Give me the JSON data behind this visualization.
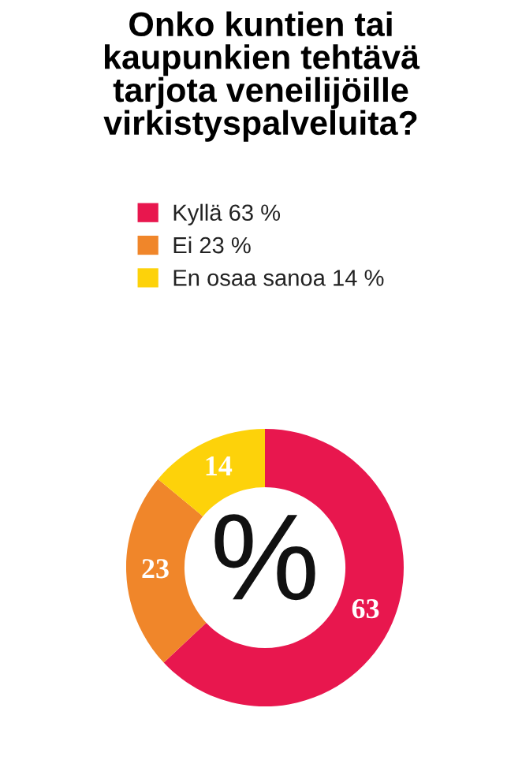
{
  "chart_data": {
    "type": "donut",
    "title": "Onko kuntien tai\nkaupunkien tehtävä\ntarjota veneilijöille\nvirkistyspalveluita?",
    "categories": [
      "Kyllä 63 %",
      "Ei 23 %",
      "En osaa sanoa 14 %"
    ],
    "values": [
      63,
      23,
      14
    ],
    "colors": [
      "#e8174e",
      "#f0862a",
      "#fdd20a"
    ],
    "data_labels": true,
    "legend": "top",
    "annotations": [
      "%"
    ]
  }
}
